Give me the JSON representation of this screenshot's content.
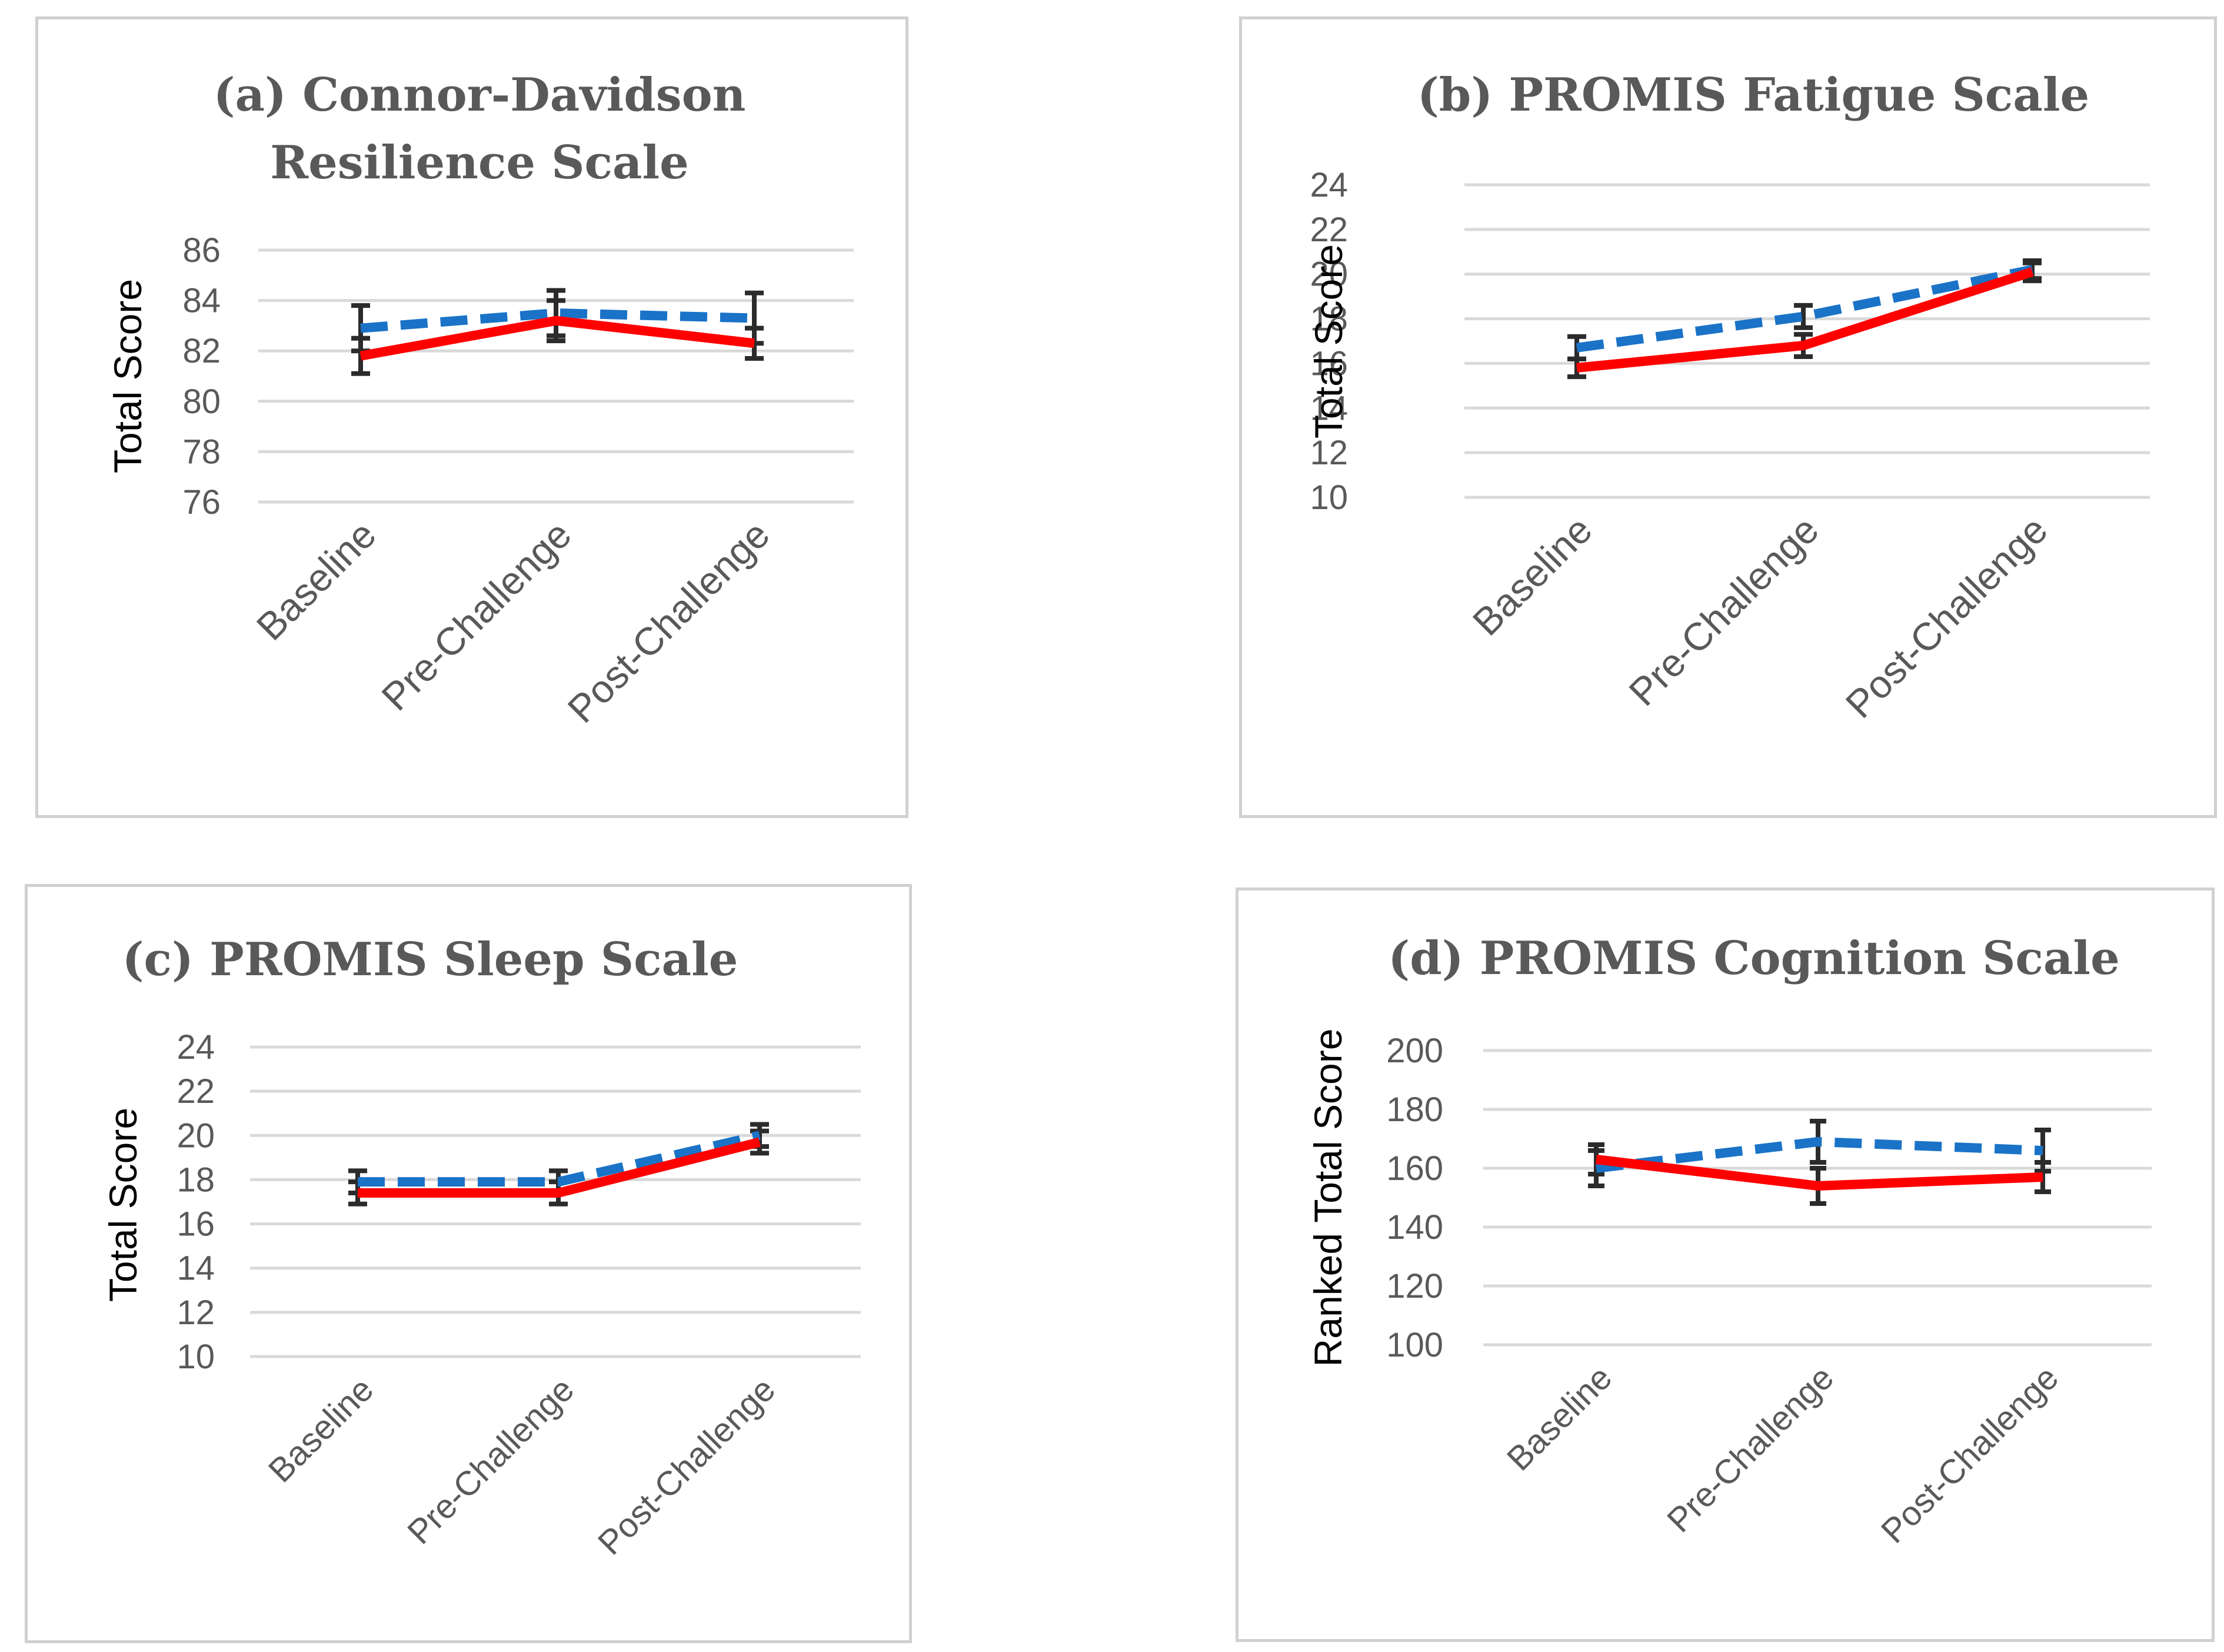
{
  "chart_data": [
    {
      "type": "line",
      "panel": "a",
      "title": "(a) Connor-Davidson",
      "title_line2": "Resilience Scale",
      "ylabel": "Total Score",
      "categories": [
        "Baseline",
        "Pre-Challenge",
        "Post-Challenge"
      ],
      "yticks": [
        "76",
        "78",
        "80",
        "82",
        "84",
        "86"
      ],
      "ylim": [
        76,
        86
      ],
      "series": [
        {
          "name": "dashed-blue",
          "color": "#1a73c7",
          "values": [
            82.9,
            83.5,
            83.3
          ],
          "err": [
            0.9,
            0.9,
            1.0
          ]
        },
        {
          "name": "solid-red",
          "color": "#ff0000",
          "values": [
            81.8,
            83.2,
            82.3
          ],
          "err": [
            0.7,
            0.8,
            0.6
          ]
        }
      ]
    },
    {
      "type": "line",
      "panel": "b",
      "title": "(b) PROMIS Fatigue Scale",
      "title_line2": "",
      "ylabel": "Total Score",
      "categories": [
        "Baseline",
        "Pre-Challenge",
        "Post-Challenge"
      ],
      "yticks": [
        "10",
        "12",
        "14",
        "16",
        "18",
        "20",
        "22",
        "24"
      ],
      "ylim": [
        10,
        24
      ],
      "series": [
        {
          "name": "dashed-blue",
          "color": "#1a73c7",
          "values": [
            16.7,
            18.1,
            20.2
          ],
          "err": [
            0.5,
            0.5,
            0.4
          ]
        },
        {
          "name": "solid-red",
          "color": "#ff0000",
          "values": [
            15.8,
            16.8,
            20.1
          ],
          "err": [
            0.4,
            0.5,
            0.4
          ]
        }
      ]
    },
    {
      "type": "line",
      "panel": "c",
      "title": "(c) PROMIS Sleep Scale",
      "title_line2": "",
      "ylabel": "Total Score",
      "categories": [
        "Baseline",
        "Pre-Challenge",
        "Post-Challenge"
      ],
      "yticks": [
        "10",
        "12",
        "14",
        "16",
        "18",
        "20",
        "22",
        "24"
      ],
      "ylim": [
        10,
        24
      ],
      "series": [
        {
          "name": "dashed-blue",
          "color": "#1a73c7",
          "values": [
            17.9,
            17.9,
            20.0
          ],
          "err": [
            0.5,
            0.5,
            0.5
          ]
        },
        {
          "name": "solid-red",
          "color": "#ff0000",
          "values": [
            17.4,
            17.4,
            19.7
          ],
          "err": [
            0.5,
            0.5,
            0.5
          ]
        }
      ]
    },
    {
      "type": "line",
      "panel": "d",
      "title": "(d) PROMIS Cognition Scale",
      "title_line2": "",
      "ylabel": "Ranked Total Score",
      "categories": [
        "Baseline",
        "Pre-Challenge",
        "Post-Challenge"
      ],
      "yticks": [
        "100",
        "120",
        "140",
        "160",
        "180",
        "200"
      ],
      "ylim": [
        100,
        200
      ],
      "series": [
        {
          "name": "dashed-blue",
          "color": "#1a73c7",
          "values": [
            160,
            169,
            166
          ],
          "err": [
            6,
            7,
            7
          ]
        },
        {
          "name": "solid-red",
          "color": "#ff0000",
          "values": [
            163,
            154,
            157
          ],
          "err": [
            5,
            6,
            5
          ]
        }
      ]
    }
  ]
}
